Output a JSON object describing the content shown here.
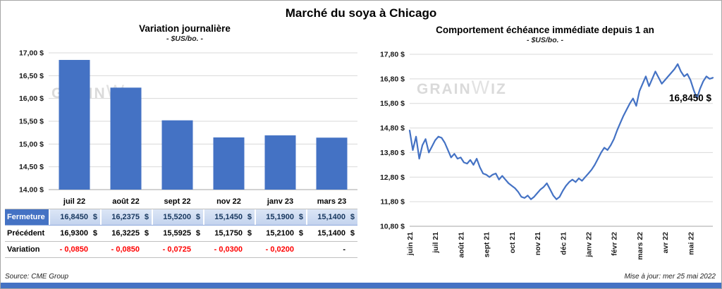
{
  "page": {
    "title": "Marché du soya à Chicago",
    "source": "Source: CME Group",
    "updated": "Mise à jour: mer 25 mai 2022",
    "watermark": "GRAINWIZ",
    "colors": {
      "accent": "#4472C4",
      "bar": "#4472C4",
      "line": "#4472C4",
      "negative": "#FF0000",
      "grid": "#D9D9D9",
      "footer_bar": "#4472C4"
    }
  },
  "chart_data": [
    {
      "type": "bar",
      "title": "Variation journalière",
      "subtitle": "- $US/bo. -",
      "categories": [
        "juil 22",
        "août 22",
        "sept 22",
        "nov 22",
        "janv 23",
        "mars 23"
      ],
      "values": [
        16.845,
        16.2375,
        15.52,
        15.145,
        15.19,
        15.14
      ],
      "ylim": [
        14.0,
        17.0
      ],
      "ytick_step": 0.5,
      "ytick_labels": [
        "14,00 $",
        "14,50 $",
        "15,00 $",
        "15,50 $",
        "16,00 $",
        "16,50 $",
        "17,00 $"
      ],
      "grid": true,
      "legend": "none"
    },
    {
      "type": "line",
      "title": "Comportement échéance immédiate depuis 1 an",
      "subtitle": "- $US/bo. -",
      "x_labels": [
        "juin 21",
        "juil 21",
        "août 21",
        "sept 21",
        "oct 21",
        "nov 21",
        "déc 21",
        "janv 22",
        "févr 22",
        "mars 22",
        "avr 22",
        "mai 22"
      ],
      "values": [
        14.7,
        13.9,
        14.45,
        13.55,
        14.1,
        14.35,
        13.8,
        14.05,
        14.3,
        14.45,
        14.4,
        14.2,
        13.9,
        13.6,
        13.75,
        13.55,
        13.6,
        13.4,
        13.35,
        13.5,
        13.3,
        13.55,
        13.2,
        12.95,
        12.9,
        12.8,
        12.9,
        12.95,
        12.7,
        12.85,
        12.7,
        12.55,
        12.45,
        12.35,
        12.2,
        12.0,
        11.95,
        12.05,
        11.9,
        12.0,
        12.15,
        12.3,
        12.4,
        12.55,
        12.3,
        12.05,
        11.9,
        12.0,
        12.25,
        12.45,
        12.6,
        12.7,
        12.6,
        12.75,
        12.65,
        12.8,
        12.95,
        13.1,
        13.3,
        13.55,
        13.8,
        14.0,
        13.9,
        14.1,
        14.35,
        14.7,
        15.0,
        15.3,
        15.55,
        15.8,
        16.0,
        15.7,
        16.3,
        16.6,
        16.9,
        16.5,
        16.8,
        17.1,
        16.85,
        16.6,
        16.75,
        16.9,
        17.05,
        17.2,
        17.4,
        17.1,
        16.9,
        17.0,
        16.75,
        16.35,
        16.0,
        16.4,
        16.7,
        16.9,
        16.8,
        16.845
      ],
      "ylim": [
        10.8,
        17.8
      ],
      "ytick_step": 1.0,
      "ytick_labels": [
        "10,80 $",
        "11,80 $",
        "12,80 $",
        "13,80 $",
        "14,80 $",
        "15,80 $",
        "16,80 $",
        "17,80 $"
      ],
      "annotation": "16,8450 $",
      "grid": true,
      "legend": "none"
    }
  ],
  "table": {
    "rows": [
      {
        "label": "Fermeture",
        "style": "fermeture",
        "unit": "$",
        "values": [
          "16,8450",
          "16,2375",
          "15,5200",
          "15,1450",
          "15,1900",
          "15,1400"
        ]
      },
      {
        "label": "Précédent",
        "style": "precedent",
        "unit": "$",
        "values": [
          "16,9300",
          "16,3225",
          "15,5925",
          "15,1750",
          "15,2100",
          "15,1400"
        ]
      },
      {
        "label": "Variation",
        "style": "variation",
        "unit": "",
        "values": [
          "- 0,0850",
          "- 0,0850",
          "- 0,0725",
          "- 0,0300",
          "- 0,0200",
          "-"
        ]
      }
    ]
  }
}
